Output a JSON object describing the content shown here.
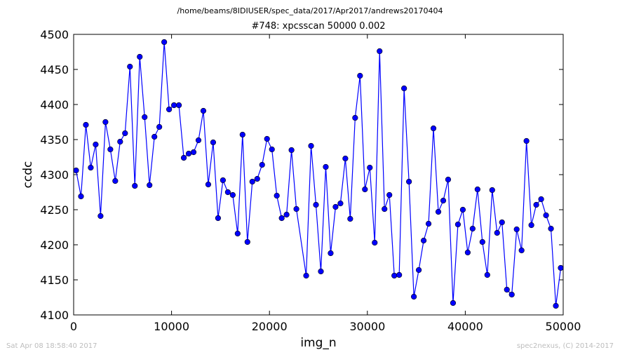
{
  "header": {
    "suptitle": "/home/beams/8IDIUSER/spec_data/2017/Apr2017/andrews20170404"
  },
  "footer": {
    "timestamp": "Sat Apr 08 18:58:40 2017",
    "credit": "spec2nexus, (C) 2014-2017"
  },
  "colors": {
    "series": "#0000ff",
    "marker": "#0000ff",
    "marker_edge": "#000000",
    "axes": "#000000"
  },
  "chart_data": {
    "type": "line",
    "title": "#748: xpcsscan 50000 0.002",
    "xlabel": "img_n",
    "ylabel": "ccdc",
    "xlim": [
      0,
      50000
    ],
    "ylim": [
      4100,
      4500
    ],
    "xticks": [
      0,
      10000,
      20000,
      30000,
      40000,
      50000
    ],
    "yticks": [
      4100,
      4150,
      4200,
      4250,
      4300,
      4350,
      4400,
      4450,
      4500
    ],
    "grid": false,
    "marker": "circle",
    "series": [
      {
        "x": [
          250,
          750,
          1250,
          1750,
          2250,
          2750,
          3250,
          3750,
          4250,
          4750,
          5250,
          5750,
          6250,
          6750,
          7250,
          7750,
          8250,
          8750,
          9250,
          9750,
          10250,
          10750,
          11250,
          11750,
          12250,
          12750,
          13250,
          13750,
          14250,
          14750,
          15250,
          15750,
          16250,
          16750,
          17250,
          17750,
          18250,
          18750,
          19250,
          19750,
          20250,
          20750,
          21250,
          21750,
          22250,
          22750,
          23750,
          24250,
          24750,
          25250,
          25750,
          26250,
          26750,
          27250,
          27750,
          28250,
          28750,
          29250,
          29750,
          30250,
          30750,
          31250,
          31750,
          32250,
          32750,
          33250,
          33750,
          34250,
          34750,
          35250,
          35750,
          36250,
          36750,
          37250,
          37750,
          38250,
          38750,
          39250,
          39750,
          40250,
          40750,
          41250,
          41750,
          42250,
          42750,
          43250,
          43750,
          44250,
          44750,
          45250,
          45750,
          46250,
          46750,
          47250,
          47750,
          48250,
          48750,
          49250,
          49750
        ],
        "y": [
          4306,
          4269,
          4371,
          4310,
          4343,
          4241,
          4375,
          4336,
          4291,
          4347,
          4359,
          4454,
          4284,
          4468,
          4382,
          4285,
          4354,
          4368,
          4489,
          4393,
          4399,
          4399,
          4324,
          4330,
          4332,
          4349,
          4391,
          4286,
          4346,
          4238,
          4292,
          4275,
          4271,
          4216,
          4357,
          4204,
          4290,
          4294,
          4314,
          4351,
          4336,
          4270,
          4238,
          4243,
          4335,
          4251,
          4156,
          4341,
          4257,
          4162,
          4311,
          4188,
          4254,
          4259,
          4323,
          4237,
          4381,
          4441,
          4279,
          4310,
          4203,
          4476,
          4251,
          4271,
          4156,
          4157,
          4423,
          4290,
          4126,
          4164,
          4206,
          4230,
          4366,
          4247,
          4263,
          4293,
          4117,
          4229,
          4250,
          4189,
          4223,
          4279,
          4204,
          4157,
          4278,
          4217,
          4232,
          4136,
          4129,
          4222,
          4192,
          4348,
          4228,
          4257,
          4265,
          4242,
          4223,
          4113,
          4167
        ]
      }
    ]
  }
}
